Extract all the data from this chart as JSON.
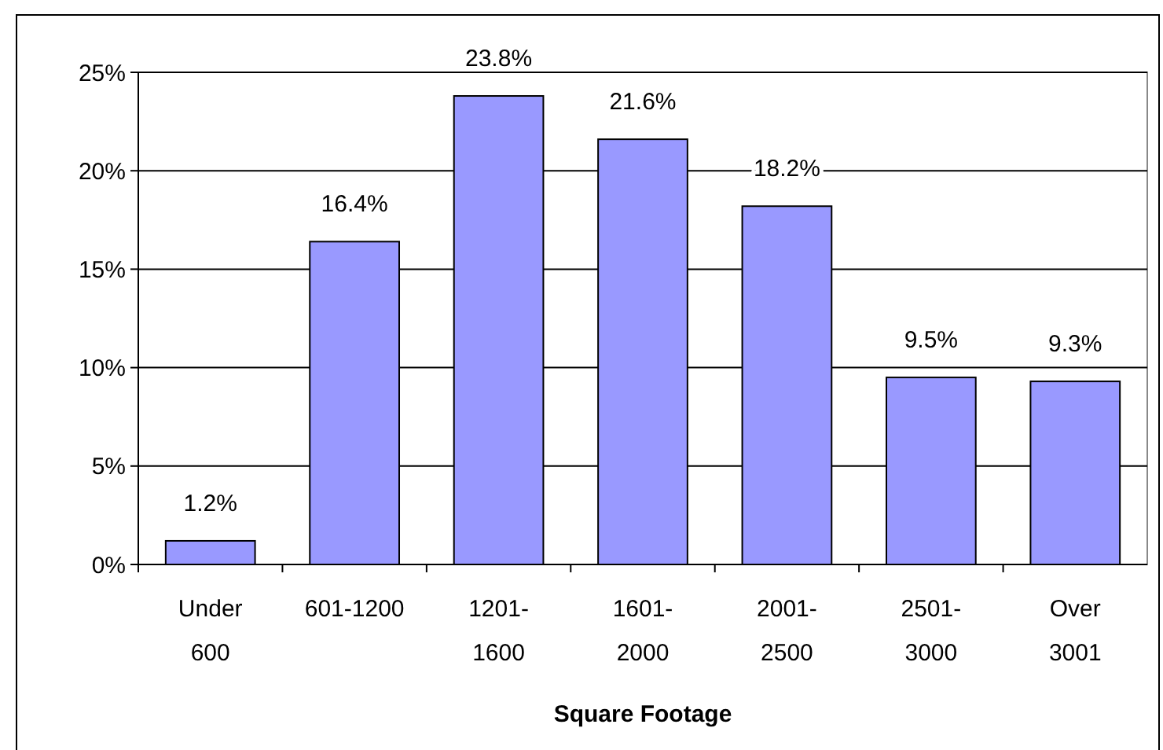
{
  "chart_data": {
    "type": "bar",
    "xlabel": "Square Footage",
    "categories": [
      "Under\n600",
      "601-1200",
      "1201-\n1600",
      "1601-\n2000",
      "2001-\n2500",
      "2501-\n3000",
      "Over\n3001"
    ],
    "values": [
      1.2,
      16.4,
      23.8,
      21.6,
      18.2,
      9.5,
      9.3
    ],
    "value_labels": [
      "1.2%",
      "16.4%",
      "23.8%",
      "21.6%",
      "18.2%",
      "9.5%",
      "9.3%"
    ],
    "color": "#9999ff",
    "ylim": [
      0,
      25
    ],
    "yticks": [
      {
        "value": 0,
        "label": "0%"
      },
      {
        "value": 5,
        "label": "5%"
      },
      {
        "value": 10,
        "label": "10%"
      },
      {
        "value": 15,
        "label": "15%"
      },
      {
        "value": 20,
        "label": "20%"
      },
      {
        "value": 25,
        "label": "25%"
      }
    ],
    "grid": "y"
  }
}
